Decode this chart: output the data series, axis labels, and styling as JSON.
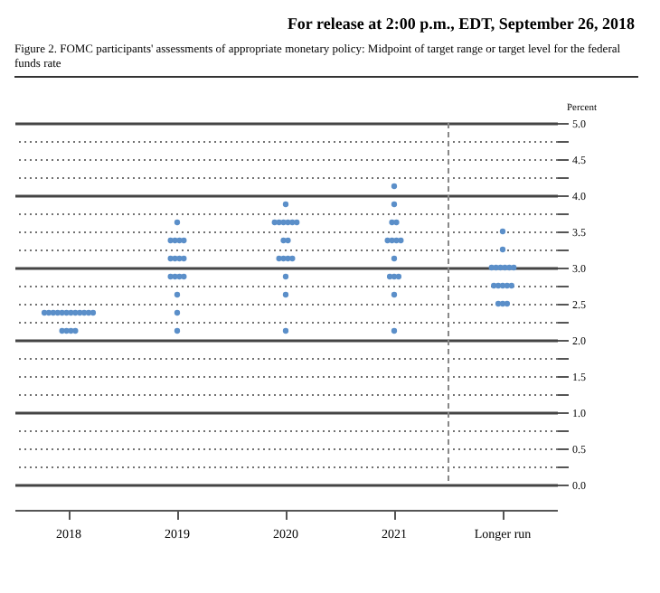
{
  "chart_data": {
    "type": "scatter",
    "title": "Figure 2. FOMC participants' assessments of appropriate monetary policy: Midpoint of target range or target level for the federal funds rate",
    "annotations": [
      "For release at 2:00 p.m., EDT, September 26, 2018"
    ],
    "ylabel": "Percent",
    "categories": [
      "2018",
      "2019",
      "2020",
      "2021",
      "Longer run"
    ],
    "marker": "circle",
    "series": [
      {
        "color": "#5b8fc9",
        "values": [
          2.375,
          3.625,
          3.875,
          4.125,
          3.5
        ]
      },
      {
        "color": "#5b8fc9",
        "values": [
          2.375,
          3.375,
          3.625,
          3.875,
          3.25
        ]
      },
      {
        "color": "#5b8fc9",
        "values": [
          2.375,
          3.375,
          3.625,
          3.625,
          3.0
        ]
      },
      {
        "color": "#5b8fc9",
        "values": [
          2.375,
          3.375,
          3.625,
          3.625,
          3.0
        ]
      },
      {
        "color": "#5b8fc9",
        "values": [
          2.375,
          3.375,
          3.625,
          3.375,
          3.0
        ]
      },
      {
        "color": "#5b8fc9",
        "values": [
          2.375,
          3.125,
          3.625,
          3.375,
          3.0
        ]
      },
      {
        "color": "#5b8fc9",
        "values": [
          2.375,
          3.125,
          3.625,
          3.375,
          3.0
        ]
      },
      {
        "color": "#5b8fc9",
        "values": [
          2.375,
          3.125,
          3.375,
          3.375,
          3.0
        ]
      },
      {
        "color": "#5b8fc9",
        "values": [
          2.375,
          3.125,
          3.375,
          3.125,
          2.75
        ]
      },
      {
        "color": "#5b8fc9",
        "values": [
          2.375,
          2.875,
          3.125,
          2.875,
          2.75
        ]
      },
      {
        "color": "#5b8fc9",
        "values": [
          2.375,
          2.875,
          3.125,
          2.875,
          2.75
        ]
      },
      {
        "color": "#5b8fc9",
        "values": [
          2.375,
          2.875,
          3.125,
          2.875,
          2.75
        ]
      },
      {
        "color": "#5b8fc9",
        "values": [
          2.125,
          2.875,
          3.125,
          2.625,
          2.75
        ]
      },
      {
        "color": "#5b8fc9",
        "values": [
          2.125,
          2.625,
          2.875,
          2.125,
          2.5
        ]
      },
      {
        "color": "#5b8fc9",
        "values": [
          2.125,
          2.375,
          2.625,
          null,
          2.5
        ]
      },
      {
        "color": "#5b8fc9",
        "values": [
          2.125,
          2.125,
          2.125,
          null,
          2.5
        ]
      }
    ],
    "ylim": [
      0,
      5
    ],
    "yticks": [
      {
        "value": 0,
        "label": "0.0"
      },
      {
        "value": 0.25,
        "label": null
      },
      0.5,
      {
        "value": 0.75,
        "label": null
      },
      {
        "value": 1,
        "label": "1.0"
      },
      {
        "value": 1.25,
        "label": null
      },
      1.5,
      {
        "value": 1.75,
        "label": null
      },
      {
        "value": 2,
        "label": "2.0"
      },
      {
        "value": 2.25,
        "label": null
      },
      2.5,
      {
        "value": 2.75,
        "label": null
      },
      {
        "value": 3,
        "label": "3.0"
      },
      {
        "value": 3.25,
        "label": null
      },
      3.5,
      {
        "value": 3.75,
        "label": null
      },
      {
        "value": 4,
        "label": "4.0"
      },
      {
        "value": 4.25,
        "label": null
      },
      4.5,
      {
        "value": 4.75,
        "label": null
      },
      {
        "value": 5,
        "label": "5.0"
      }
    ],
    "grid": true,
    "ref_lines": [
      {
        "axis": "x",
        "value": "Longer run",
        "line_style": "dashed",
        "color": "#888888"
      }
    ]
  }
}
